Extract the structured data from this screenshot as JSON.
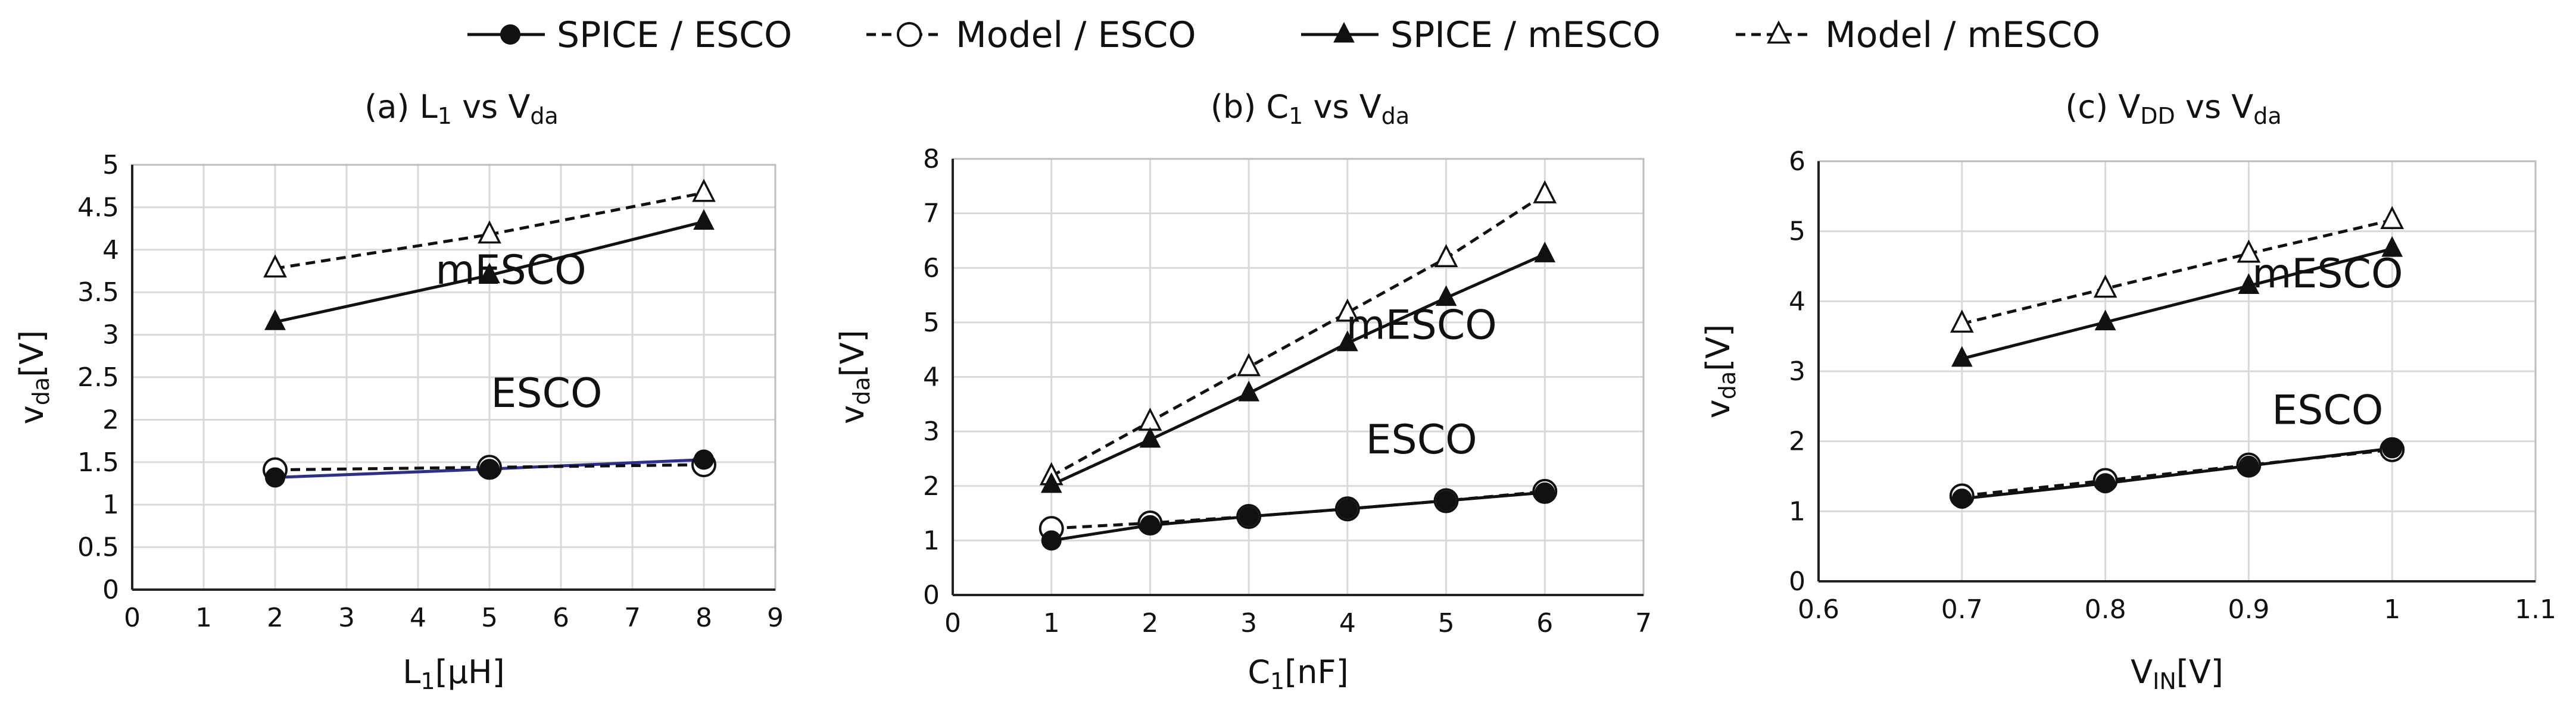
{
  "legend": [
    {
      "label": "SPICE / ESCO",
      "marker": "filled-circle",
      "dash": false
    },
    {
      "label": "Model / ESCO",
      "marker": "open-circle",
      "dash": true
    },
    {
      "label": "SPICE / mESCO",
      "marker": "filled-triangle",
      "dash": false
    },
    {
      "label": "Model / mESCO",
      "marker": "open-triangle",
      "dash": true
    }
  ],
  "colors": {
    "line": "#111111",
    "grid": "#d9d9d9",
    "blue_line": "#2b2f8f"
  },
  "chart_data": [
    {
      "type": "line",
      "title": "(a) L₁ vs Vda",
      "title_main": "(a) L",
      "title_sub1": "1",
      "title_mid": " vs V",
      "title_sub2": "da",
      "xlabel_main": "L",
      "xlabel_sub": "1",
      "xlabel_unit": "[μH]",
      "ylabel_main": "v",
      "ylabel_sub": "da",
      "ylabel_unit": "[V]",
      "xlim": [
        0,
        9
      ],
      "ylim": [
        0,
        5
      ],
      "xticks": [
        "0",
        "1",
        "2",
        "3",
        "4",
        "5",
        "6",
        "7",
        "8",
        "9"
      ],
      "yticks": [
        "0",
        "0.5",
        "1",
        "1.5",
        "2",
        "2.5",
        "3",
        "3.5",
        "4",
        "4.5",
        "5"
      ],
      "x": [
        2,
        5,
        8
      ],
      "series": [
        {
          "name": "SPICE / ESCO",
          "values": [
            1.32,
            1.42,
            1.53
          ]
        },
        {
          "name": "Model / ESCO",
          "values": [
            1.41,
            1.44,
            1.47
          ]
        },
        {
          "name": "SPICE / mESCO",
          "values": [
            3.15,
            3.7,
            4.33
          ]
        },
        {
          "name": "Model / mESCO",
          "values": [
            3.78,
            4.18,
            4.67
          ]
        }
      ],
      "annotations": [
        {
          "text": "mESCO",
          "x": 5.3,
          "y": 3.6
        },
        {
          "text": "ESCO",
          "x": 5.8,
          "y": 2.15
        }
      ]
    },
    {
      "type": "line",
      "title": "(b) C₁ vs Vda",
      "title_main": "(b) C",
      "title_sub1": "1",
      "title_mid": " vs V",
      "title_sub2": "da",
      "xlabel_main": "C",
      "xlabel_sub": "1",
      "xlabel_unit": "[nF]",
      "ylabel_main": "v",
      "ylabel_sub": "da",
      "ylabel_unit": "[V]",
      "xlim": [
        0,
        7
      ],
      "ylim": [
        0,
        8
      ],
      "xticks": [
        "0",
        "1",
        "2",
        "3",
        "4",
        "5",
        "6",
        "7"
      ],
      "yticks": [
        "0",
        "1",
        "2",
        "3",
        "4",
        "5",
        "6",
        "7",
        "8"
      ],
      "x": [
        1,
        2,
        3,
        4,
        5,
        6
      ],
      "series": [
        {
          "name": "SPICE / ESCO",
          "values": [
            1.0,
            1.28,
            1.44,
            1.58,
            1.73,
            1.88
          ]
        },
        {
          "name": "Model / ESCO",
          "values": [
            1.22,
            1.32,
            1.44,
            1.58,
            1.73,
            1.9
          ]
        },
        {
          "name": "SPICE / mESCO",
          "values": [
            2.02,
            2.85,
            3.7,
            4.62,
            5.45,
            6.25
          ]
        },
        {
          "name": "Model / mESCO",
          "values": [
            2.18,
            3.18,
            4.18,
            5.18,
            6.18,
            7.35
          ]
        }
      ],
      "annotations": [
        {
          "text": "mESCO",
          "x": 4.75,
          "y": 4.7
        },
        {
          "text": "ESCO",
          "x": 4.75,
          "y": 2.6
        }
      ]
    },
    {
      "type": "line",
      "title": "(c) VDD vs Vda",
      "title_main": "(c) V",
      "title_sub1": "DD",
      "title_mid": " vs V",
      "title_sub2": "da",
      "xlabel_main": "V",
      "xlabel_sub": "IN",
      "xlabel_unit": "[V]",
      "ylabel_main": "v",
      "ylabel_sub": "da",
      "ylabel_unit": "[V]",
      "xlim": [
        0.6,
        1.1
      ],
      "ylim": [
        0,
        6
      ],
      "xticks": [
        "0.6",
        "0.7",
        "0.8",
        "0.9",
        "1",
        "1.1"
      ],
      "yticks": [
        "0",
        "1",
        "2",
        "3",
        "4",
        "5",
        "6"
      ],
      "x": [
        0.7,
        0.8,
        0.9,
        1.0
      ],
      "series": [
        {
          "name": "SPICE / ESCO",
          "values": [
            1.18,
            1.4,
            1.65,
            1.9
          ]
        },
        {
          "name": "Model / ESCO",
          "values": [
            1.22,
            1.44,
            1.66,
            1.88
          ]
        },
        {
          "name": "SPICE / mESCO",
          "values": [
            3.18,
            3.7,
            4.22,
            4.75
          ]
        },
        {
          "name": "Model / mESCO",
          "values": [
            3.68,
            4.18,
            4.68,
            5.16
          ]
        }
      ],
      "annotations": [
        {
          "text": "mESCO",
          "x": 0.955,
          "y": 4.2
        },
        {
          "text": "ESCO",
          "x": 0.955,
          "y": 2.25
        }
      ]
    }
  ]
}
